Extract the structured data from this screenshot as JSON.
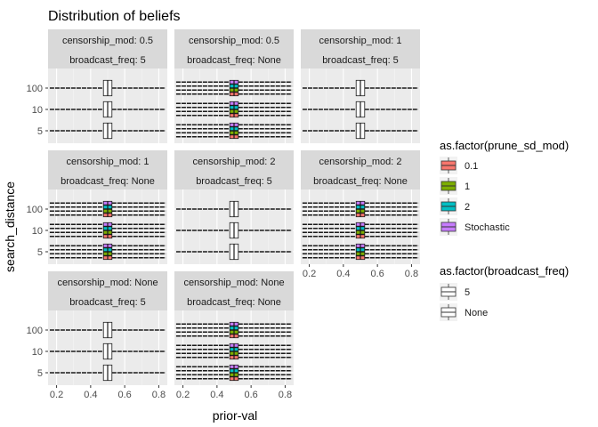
{
  "chart_data": {
    "type": "boxplot",
    "orientation": "horizontal",
    "title": "Distribution of beliefs",
    "xlabel": "prior-val",
    "ylabel": "search_distance",
    "xlim": [
      0.15,
      0.85
    ],
    "x_ticks": [
      0.2,
      0.4,
      0.6,
      0.8
    ],
    "x_tick_labels": [
      "0.2",
      "0.4",
      "0.6",
      "0.8"
    ],
    "y_categories": [
      "5",
      "10",
      "100"
    ],
    "grid": true,
    "legend_position": "right",
    "fill_legend": {
      "title": "as.factor(prune_sd_mod)",
      "entries": [
        {
          "label": "0.1",
          "color": "#F8766D"
        },
        {
          "label": "1",
          "color": "#7CAE00"
        },
        {
          "label": "2",
          "color": "#00BFC4"
        },
        {
          "label": "Stochastic",
          "color": "#C77CFF"
        }
      ]
    },
    "linetype_legend": {
      "title": "as.factor(broadcast_freq)",
      "entries": [
        {
          "label": "5"
        },
        {
          "label": "None"
        }
      ]
    },
    "facets": [
      {
        "strip1": "censorship_mod: 0.5",
        "strip2": "broadcast_freq: 5",
        "groups": [
          "none"
        ]
      },
      {
        "strip1": "censorship_mod: 0.5",
        "strip2": "broadcast_freq: None",
        "groups": [
          "0.1",
          "1",
          "2",
          "Stochastic"
        ]
      },
      {
        "strip1": "censorship_mod: 1",
        "strip2": "broadcast_freq: 5",
        "groups": [
          "none"
        ]
      },
      {
        "strip1": "censorship_mod: 1",
        "strip2": "broadcast_freq: None",
        "groups": [
          "0.1",
          "1",
          "2",
          "Stochastic"
        ]
      },
      {
        "strip1": "censorship_mod: 2",
        "strip2": "broadcast_freq: 5",
        "groups": [
          "none"
        ]
      },
      {
        "strip1": "censorship_mod: 2",
        "strip2": "broadcast_freq: None",
        "groups": [
          "0.1",
          "1",
          "2",
          "Stochastic"
        ]
      },
      {
        "strip1": "censorship_mod: None",
        "strip2": "broadcast_freq: 5",
        "groups": [
          "none"
        ]
      },
      {
        "strip1": "censorship_mod: None",
        "strip2": "broadcast_freq: None",
        "groups": [
          "0.1",
          "1",
          "2",
          "Stochastic"
        ]
      }
    ],
    "box_stats": {
      "whisker_low": 0.16,
      "q1": 0.475,
      "median": 0.5,
      "q3": 0.525,
      "whisker_high": 0.84
    }
  }
}
